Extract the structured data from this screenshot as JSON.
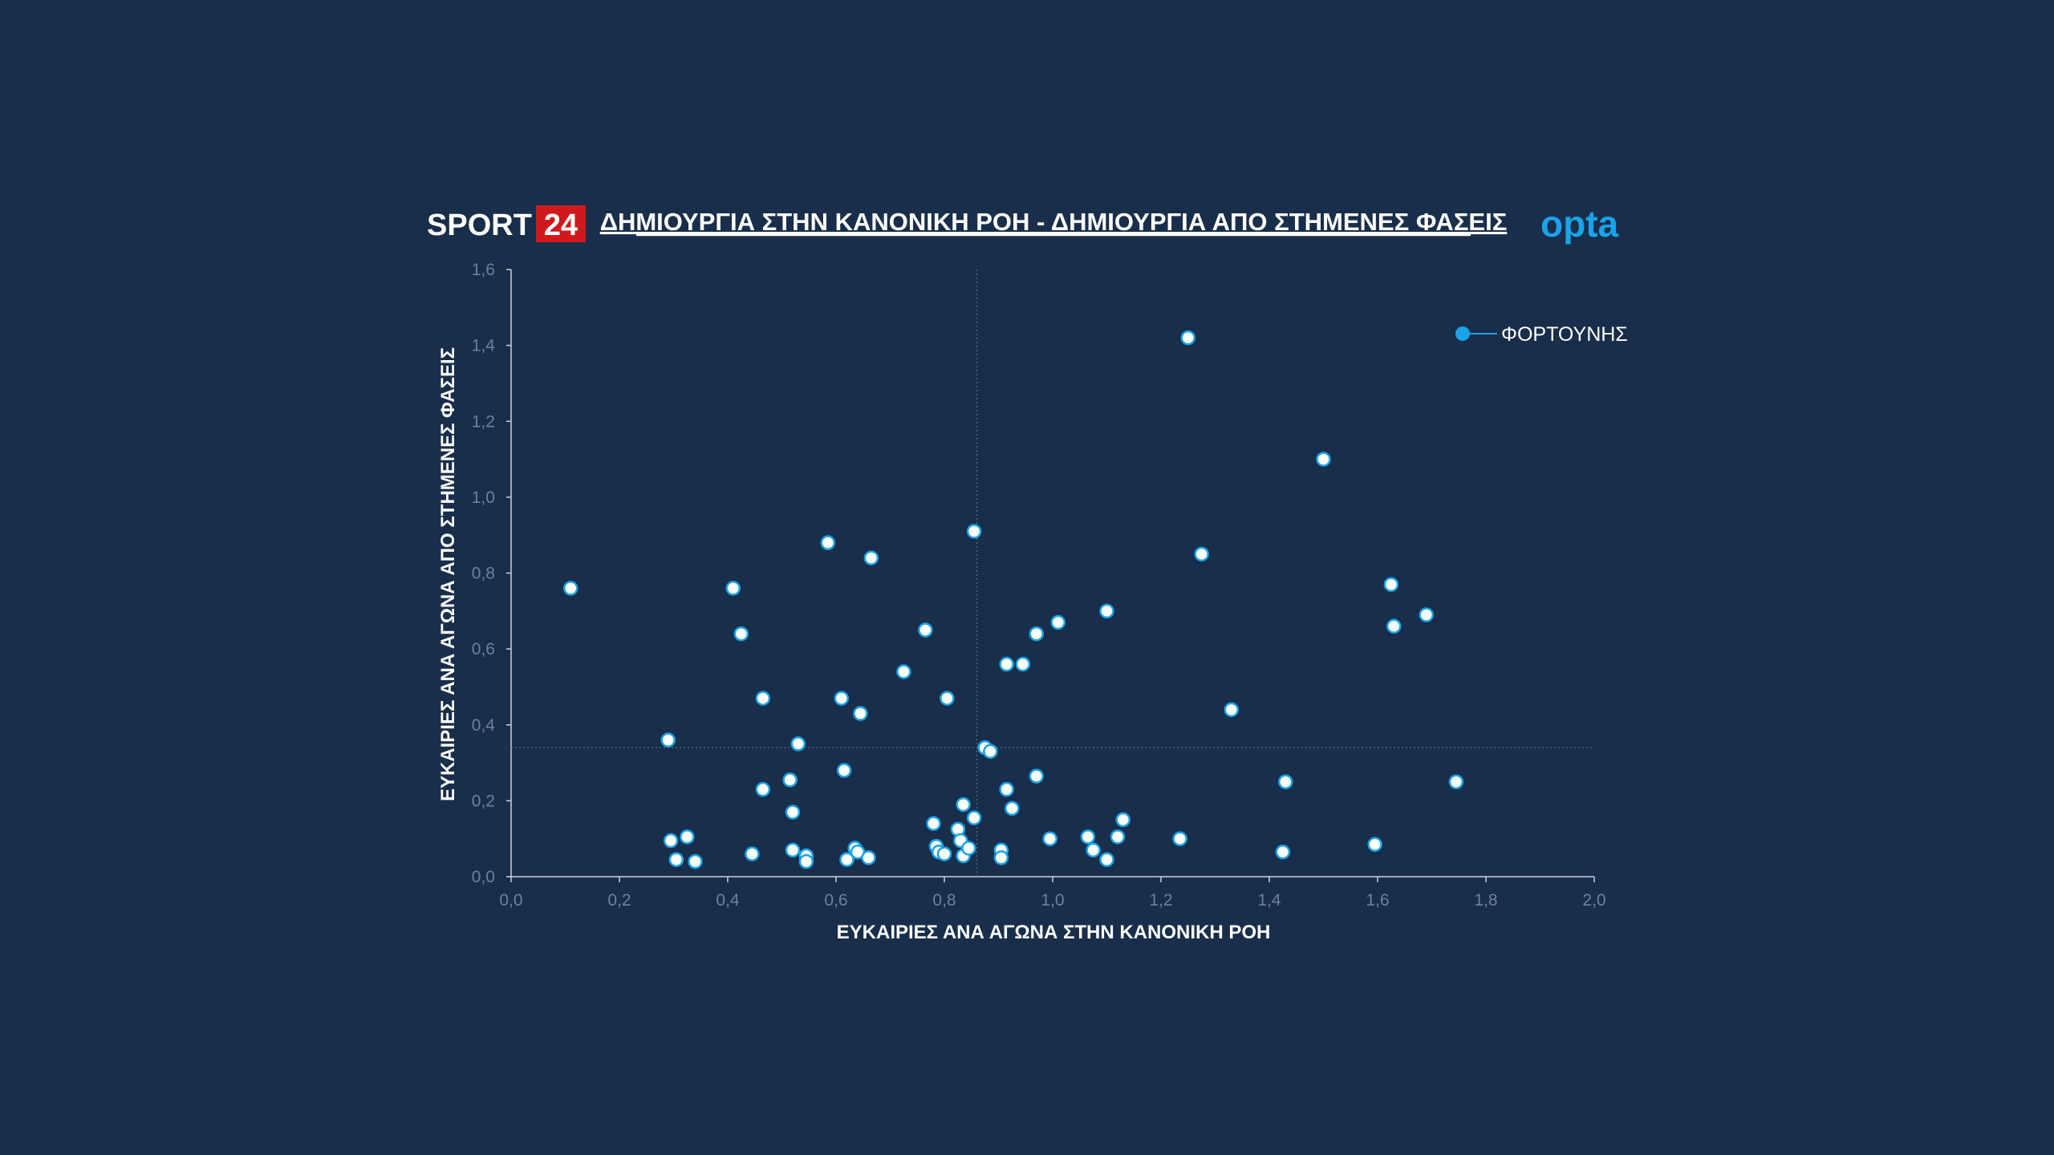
{
  "brand": {
    "sport": "SPORT",
    "num": "24",
    "num_bg": "#d0191c",
    "provider": "opta"
  },
  "chart_data": {
    "type": "scatter",
    "title": "ΔΗΜΙΟΥΡΓΙΑ ΣΤΗΝ ΚΑΝΟΝΙΚΗ ΡΟΗ - ΔΗΜΙΟΥΡΓΙΑ ΑΠΟ ΣΤΗΜΕΝΕΣ ΦΑΣΕΙΣ",
    "xlabel": "ΕΥΚΑΙΡΙΕΣ ΑΝΑ ΑΓΩΝΑ ΣΤΗΝ ΚΑΝΟΝΙΚΗ ΡΟΗ",
    "ylabel": "ΕΥΚΑΙΡΙΕΣ ΑΝΑ ΑΓΩΝΑ ΑΠΟ ΣΤΗΜΕΝΕΣ ΦΑΣΕΙΣ",
    "xlim": [
      0,
      2.0
    ],
    "ylim": [
      0,
      1.6
    ],
    "xticks": [
      "0,0",
      "0,2",
      "0,4",
      "0,6",
      "0,8",
      "1,0",
      "1,2",
      "1,4",
      "1,6",
      "1,8",
      "2,0"
    ],
    "yticks": [
      "0,0",
      "0,2",
      "0,4",
      "0,6",
      "0,8",
      "1,0",
      "1,2",
      "1,4",
      "1,6"
    ],
    "reference_lines": {
      "x": 0.86,
      "y": 0.34
    },
    "legend": {
      "label": "ΦΟΡΤΟΥΝΗΣ",
      "position": "top-right"
    },
    "colors": {
      "point_fill": "#ffffff",
      "point_stroke": "#1aa3e8",
      "highlight": "#1aa3e8",
      "axis": "#c8d2dd",
      "ref_line": "#5c6f88"
    },
    "points": [
      [
        0.11,
        0.76
      ],
      [
        0.29,
        0.36
      ],
      [
        0.295,
        0.095
      ],
      [
        0.305,
        0.045
      ],
      [
        0.325,
        0.105
      ],
      [
        0.34,
        0.04
      ],
      [
        0.41,
        0.76
      ],
      [
        0.425,
        0.64
      ],
      [
        0.445,
        0.06
      ],
      [
        0.465,
        0.47
      ],
      [
        0.465,
        0.23
      ],
      [
        0.515,
        0.255
      ],
      [
        0.52,
        0.17
      ],
      [
        0.52,
        0.07
      ],
      [
        0.53,
        0.35
      ],
      [
        0.545,
        0.055
      ],
      [
        0.545,
        0.04
      ],
      [
        0.585,
        0.88
      ],
      [
        0.61,
        0.47
      ],
      [
        0.615,
        0.28
      ],
      [
        0.62,
        0.045
      ],
      [
        0.635,
        0.075
      ],
      [
        0.64,
        0.065
      ],
      [
        0.645,
        0.43
      ],
      [
        0.66,
        0.05
      ],
      [
        0.665,
        0.84
      ],
      [
        0.725,
        0.54
      ],
      [
        0.765,
        0.65
      ],
      [
        0.78,
        0.14
      ],
      [
        0.785,
        0.08
      ],
      [
        0.79,
        0.065
      ],
      [
        0.8,
        0.06
      ],
      [
        0.805,
        0.47
      ],
      [
        0.825,
        0.125
      ],
      [
        0.83,
        0.095
      ],
      [
        0.835,
        0.19
      ],
      [
        0.835,
        0.055
      ],
      [
        0.845,
        0.075
      ],
      [
        0.855,
        0.155
      ],
      [
        0.855,
        0.91
      ],
      [
        0.875,
        0.34
      ],
      [
        0.885,
        0.33
      ],
      [
        0.905,
        0.07
      ],
      [
        0.905,
        0.05
      ],
      [
        0.915,
        0.56
      ],
      [
        0.915,
        0.23
      ],
      [
        0.925,
        0.18
      ],
      [
        0.945,
        0.56
      ],
      [
        0.97,
        0.64
      ],
      [
        0.97,
        0.265
      ],
      [
        0.995,
        0.1
      ],
      [
        1.01,
        0.67
      ],
      [
        1.065,
        0.105
      ],
      [
        1.075,
        0.07
      ],
      [
        1.1,
        0.045
      ],
      [
        1.1,
        0.7
      ],
      [
        1.12,
        0.105
      ],
      [
        1.13,
        0.15
      ],
      [
        1.235,
        0.1
      ],
      [
        1.25,
        1.42
      ],
      [
        1.275,
        0.85
      ],
      [
        1.33,
        0.44
      ],
      [
        1.425,
        0.065
      ],
      [
        1.43,
        0.25
      ],
      [
        1.5,
        1.1
      ],
      [
        1.595,
        0.085
      ],
      [
        1.625,
        0.77
      ],
      [
        1.63,
        0.66
      ],
      [
        1.69,
        0.69
      ],
      [
        1.745,
        0.25
      ]
    ]
  }
}
